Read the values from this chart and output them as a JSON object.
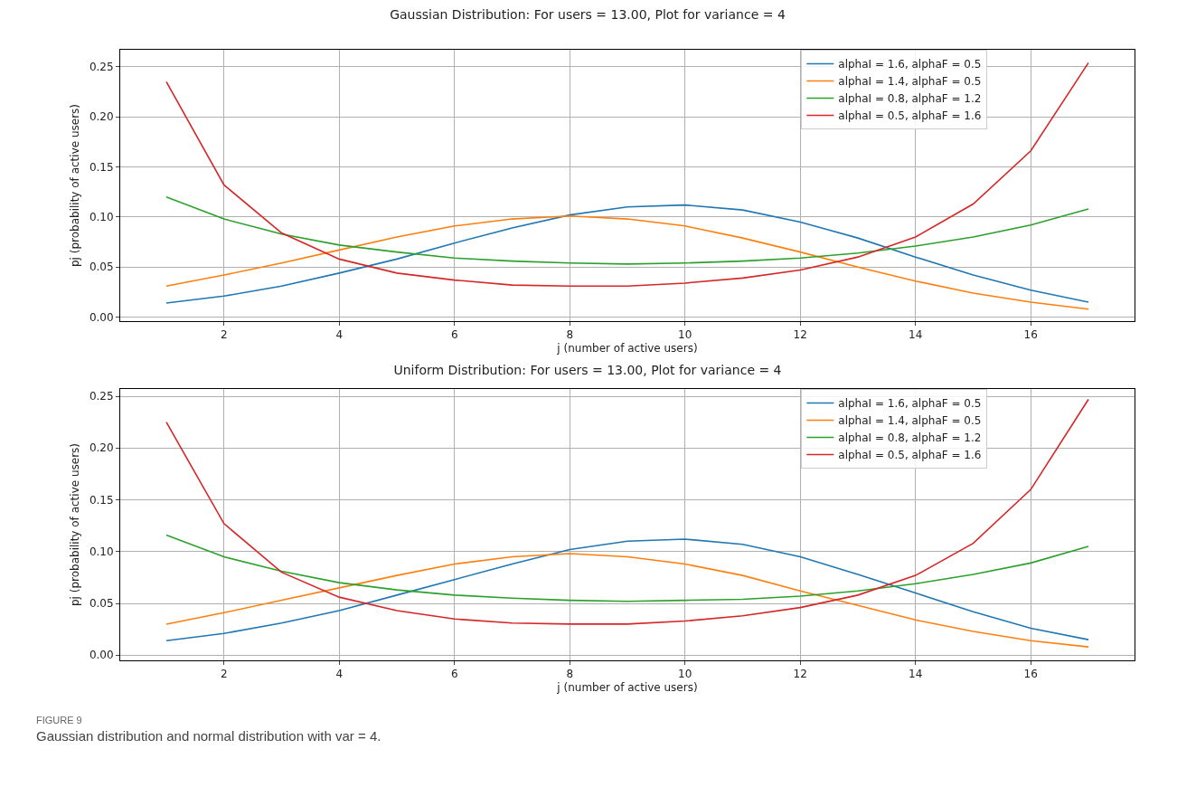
{
  "chart_data": [
    {
      "type": "line",
      "title": "Gaussian Distribution: For users = 13.00, Plot for variance = 4",
      "xlabel": "j (number of active users)",
      "ylabel": "pj (probability of active users)",
      "x": [
        1,
        2,
        3,
        4,
        5,
        6,
        7,
        8,
        9,
        10,
        11,
        12,
        13,
        14,
        15,
        16,
        17
      ],
      "xlim": [
        0.2,
        17.8
      ],
      "xticks": [
        2,
        4,
        6,
        8,
        10,
        12,
        14,
        16
      ],
      "ylim": [
        -0.004,
        0.267
      ],
      "yticks": [
        {
          "value": 0,
          "label": "0.00"
        },
        {
          "value": 0.05,
          "label": "0.05"
        },
        {
          "value": 0.1,
          "label": "0.10"
        },
        {
          "value": 0.15,
          "label": "0.15"
        },
        {
          "value": 0.2,
          "label": "0.20"
        },
        {
          "value": 0.25,
          "label": "0.25"
        }
      ],
      "grid": true,
      "legend": "top right",
      "marker": "none",
      "line_style": "solid",
      "series": [
        {
          "name": "alphaI = 1.6, alphaF = 0.5",
          "color": "#1f77b4",
          "values": [
            0.014,
            0.021,
            0.031,
            0.044,
            0.058,
            0.074,
            0.089,
            0.102,
            0.11,
            0.112,
            0.107,
            0.095,
            0.079,
            0.06,
            0.042,
            0.027,
            0.015
          ]
        },
        {
          "name": "alphaI = 1.4, alphaF = 0.5",
          "color": "#ff7f0e",
          "values": [
            0.031,
            0.042,
            0.054,
            0.067,
            0.08,
            0.091,
            0.098,
            0.101,
            0.098,
            0.091,
            0.079,
            0.065,
            0.05,
            0.036,
            0.024,
            0.015,
            0.008
          ]
        },
        {
          "name": "alphaI = 0.8, alphaF = 1.2",
          "color": "#2ca02c",
          "values": [
            0.12,
            0.098,
            0.083,
            0.072,
            0.065,
            0.059,
            0.056,
            0.054,
            0.053,
            0.054,
            0.056,
            0.059,
            0.064,
            0.071,
            0.08,
            0.092,
            0.108
          ]
        },
        {
          "name": "alphaI = 0.5, alphaF = 1.6",
          "color": "#d62728",
          "values": [
            0.235,
            0.132,
            0.084,
            0.058,
            0.044,
            0.037,
            0.032,
            0.031,
            0.031,
            0.034,
            0.039,
            0.047,
            0.06,
            0.08,
            0.113,
            0.166,
            0.254
          ]
        }
      ]
    },
    {
      "type": "line",
      "title": "Uniform Distribution: For users = 13.00, Plot for variance = 4",
      "xlabel": "j (number of active users)",
      "ylabel": "pj (probability of active users)",
      "x": [
        1,
        2,
        3,
        4,
        5,
        6,
        7,
        8,
        9,
        10,
        11,
        12,
        13,
        14,
        15,
        16,
        17
      ],
      "xlim": [
        0.2,
        17.8
      ],
      "xticks": [
        2,
        4,
        6,
        8,
        10,
        12,
        14,
        16
      ],
      "ylim": [
        -0.005,
        0.257
      ],
      "yticks": [
        {
          "value": 0,
          "label": "0.00"
        },
        {
          "value": 0.05,
          "label": "0.05"
        },
        {
          "value": 0.1,
          "label": "0.10"
        },
        {
          "value": 0.15,
          "label": "0.15"
        },
        {
          "value": 0.2,
          "label": "0.20"
        },
        {
          "value": 0.25,
          "label": "0.25"
        }
      ],
      "grid": true,
      "legend": "top right",
      "marker": "none",
      "line_style": "solid",
      "annotations": [
        "FIGURE 9",
        "Gaussian distribution and normal distribution with var = 4."
      ],
      "series": [
        {
          "name": "alphaI = 1.6, alphaF = 0.5",
          "color": "#1f77b4",
          "values": [
            0.014,
            0.021,
            0.031,
            0.043,
            0.058,
            0.073,
            0.088,
            0.102,
            0.11,
            0.112,
            0.107,
            0.095,
            0.078,
            0.06,
            0.042,
            0.026,
            0.015
          ]
        },
        {
          "name": "alphaI = 1.4, alphaF = 0.5",
          "color": "#ff7f0e",
          "values": [
            0.03,
            0.041,
            0.053,
            0.065,
            0.077,
            0.088,
            0.095,
            0.098,
            0.095,
            0.088,
            0.077,
            0.062,
            0.048,
            0.034,
            0.023,
            0.014,
            0.008
          ]
        },
        {
          "name": "alphaI = 0.8, alphaF = 1.2",
          "color": "#2ca02c",
          "values": [
            0.116,
            0.095,
            0.081,
            0.07,
            0.063,
            0.058,
            0.055,
            0.053,
            0.052,
            0.053,
            0.054,
            0.057,
            0.062,
            0.069,
            0.078,
            0.089,
            0.105
          ]
        },
        {
          "name": "alphaI = 0.5, alphaF = 1.6",
          "color": "#d62728",
          "values": [
            0.225,
            0.127,
            0.08,
            0.056,
            0.043,
            0.035,
            0.031,
            0.03,
            0.03,
            0.033,
            0.038,
            0.046,
            0.058,
            0.077,
            0.108,
            0.16,
            0.247
          ]
        }
      ]
    }
  ]
}
